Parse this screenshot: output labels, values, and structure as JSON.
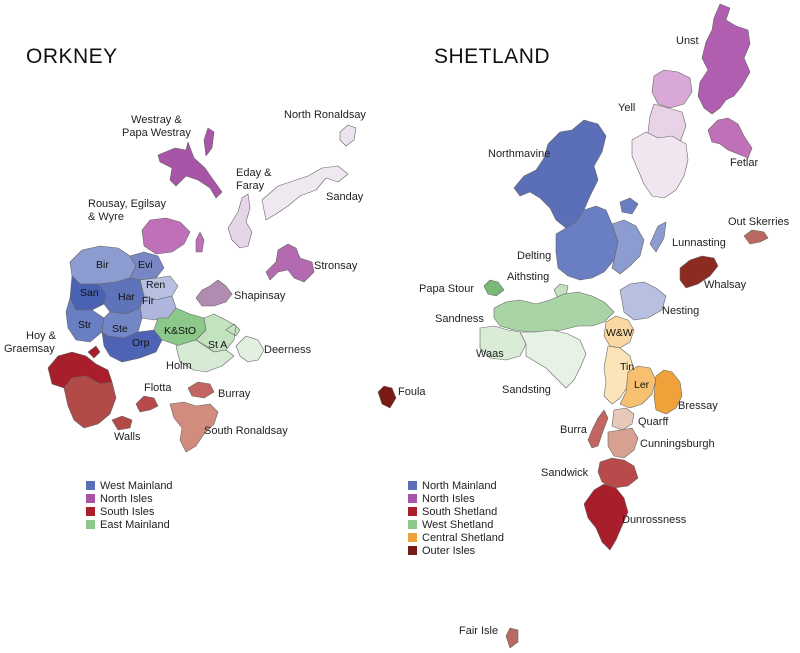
{
  "orkney": {
    "title": "ORKNEY",
    "labels": {
      "westray": [
        "Westray &",
        "Papa Westray"
      ],
      "north_ronaldsay": "North Ronaldsay",
      "eday": [
        "Eday &",
        "Faray"
      ],
      "sanday": "Sanday",
      "rousay": [
        "Rousay, Egilsay",
        "& Wyre"
      ],
      "stronsay": "Stronsay",
      "shapinsay": "Shapinsay",
      "hoy": [
        "Hoy &",
        "Graemsay"
      ],
      "deerness": "Deerness",
      "holm": "Holm",
      "flotta": "Flotta",
      "burray": "Burray",
      "walls": "Walls",
      "south_ronaldsay": "South Ronaldsay"
    },
    "inner_labels": {
      "bir": "Bir",
      "evi": "Evi",
      "ren": "Ren",
      "san": "San",
      "har": "Har",
      "fir": "Fir",
      "str": "Str",
      "ste": "Ste",
      "orp": "Orp",
      "kstO": "K&StO",
      "sta": "St A"
    },
    "legend": [
      {
        "label": "West Mainland",
        "color": "#5b6fb8"
      },
      {
        "label": "North Isles",
        "color": "#a855a8"
      },
      {
        "label": "South Isles",
        "color": "#a81e2a"
      },
      {
        "label": "East Mainland",
        "color": "#8cc88a"
      }
    ]
  },
  "shetland": {
    "title": "SHETLAND",
    "labels": {
      "unst": "Unst",
      "yell": "Yell",
      "northmavine": "Northmavine",
      "fetlar": "Fetlar",
      "out_skerries": "Out Skerries",
      "lunnasting": "Lunnasting",
      "delting": "Delting",
      "aithsting": "Aithsting",
      "papa_stour": "Papa Stour",
      "whalsay": "Whalsay",
      "sandness": "Sandness",
      "nesting": "Nesting",
      "waas": "Waas",
      "sandsting": "Sandsting",
      "foula": "Foula",
      "bressay": "Bressay",
      "quarff": "Quarff",
      "burra": "Burra",
      "cunningsburgh": "Cunningsburgh",
      "sandwick": "Sandwick",
      "dunrossness": "Dunrossness",
      "fair_isle": "Fair Isle"
    },
    "inner_labels": {
      "ww": "W&W",
      "tin": "Tin",
      "ler": "Ler"
    },
    "legend": [
      {
        "label": "North Mainland",
        "color": "#5b6fb8"
      },
      {
        "label": "North Isles",
        "color": "#a855a8"
      },
      {
        "label": "South Shetland",
        "color": "#a81e2a"
      },
      {
        "label": "West Shetland",
        "color": "#8cc88a"
      },
      {
        "label": "Central Shetland",
        "color": "#f0a23a"
      },
      {
        "label": "Outer Isles",
        "color": "#7a1a14"
      }
    ]
  }
}
